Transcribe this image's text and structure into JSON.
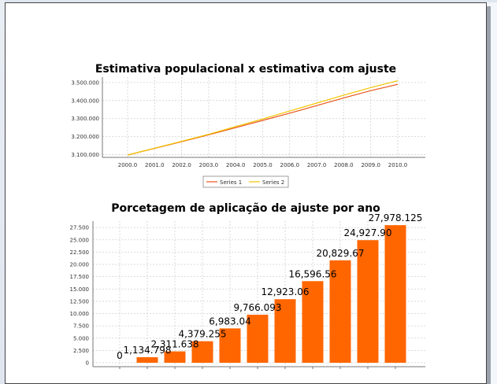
{
  "chart_data": [
    {
      "type": "line",
      "title": "Estimativa populacional x estimativa com ajuste",
      "x": [
        "2000.0",
        "2001.0",
        "2002.0",
        "2003.0",
        "2004.0",
        "2005.0",
        "2006.0",
        "2007.0",
        "2008.0",
        "2009.0",
        "2010.0"
      ],
      "y_tick_labels": [
        "3.100.000",
        "3.200.000",
        "3.300.000",
        "3.400.000",
        "3.500.000"
      ],
      "ylim": [
        3085000,
        3530000
      ],
      "grid": true,
      "legend_position": "bottom",
      "series": [
        {
          "name": "Series 1",
          "color": "#e8561a",
          "values": [
            3098000,
            3135000,
            3172000,
            3210000,
            3250000,
            3290000,
            3330000,
            3372000,
            3415000,
            3455000,
            3490000
          ]
        },
        {
          "name": "Series 2",
          "color": "#f2c400",
          "values": [
            3098000,
            3136000,
            3174000,
            3213000,
            3256000,
            3298000,
            3342000,
            3386000,
            3430000,
            3472000,
            3510000
          ]
        }
      ]
    },
    {
      "type": "bar",
      "title": "Porcetagem de aplicação de ajuste por ano",
      "color": "#ff6600",
      "values": [
        0,
        1134.798,
        2311.638,
        4379.255,
        6983.04,
        9766.093,
        12923.06,
        16596.56,
        20829.67,
        24927.9,
        27978.125
      ],
      "data_labels": [
        "0",
        "1,134.798",
        "2,311.638",
        "4,379.255",
        "6,983.04",
        "9,766.093",
        "12,923.06",
        "16,596.56",
        "20,829.67",
        "24,927.90",
        "27,978.125"
      ],
      "y_tick_labels": [
        "0",
        "2.500",
        "5.000",
        "7.500",
        "10.000",
        "12.500",
        "15.000",
        "17.500",
        "20.000",
        "22.500",
        "25.000",
        "27.500"
      ],
      "ylim": [
        -800,
        28800
      ],
      "grid": true
    }
  ]
}
